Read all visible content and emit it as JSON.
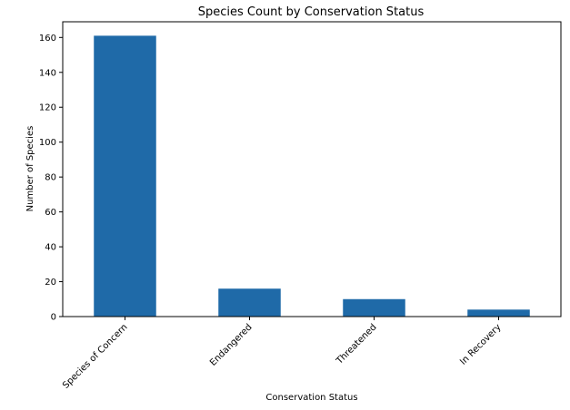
{
  "chart_data": {
    "type": "bar",
    "title": "Species Count by Conservation Status",
    "xlabel": "Conservation Status",
    "ylabel": "Number of Species",
    "categories": [
      "Species of Concern",
      "Endangered",
      "Threatened",
      "In Recovery"
    ],
    "values": [
      161,
      16,
      10,
      4
    ],
    "ylim": [
      0,
      169
    ],
    "yticks": [
      "0",
      "20",
      "40",
      "60",
      "80",
      "100",
      "120",
      "140",
      "160"
    ],
    "bar_color": "#1f6aa8",
    "grid": false,
    "legend": "none"
  }
}
